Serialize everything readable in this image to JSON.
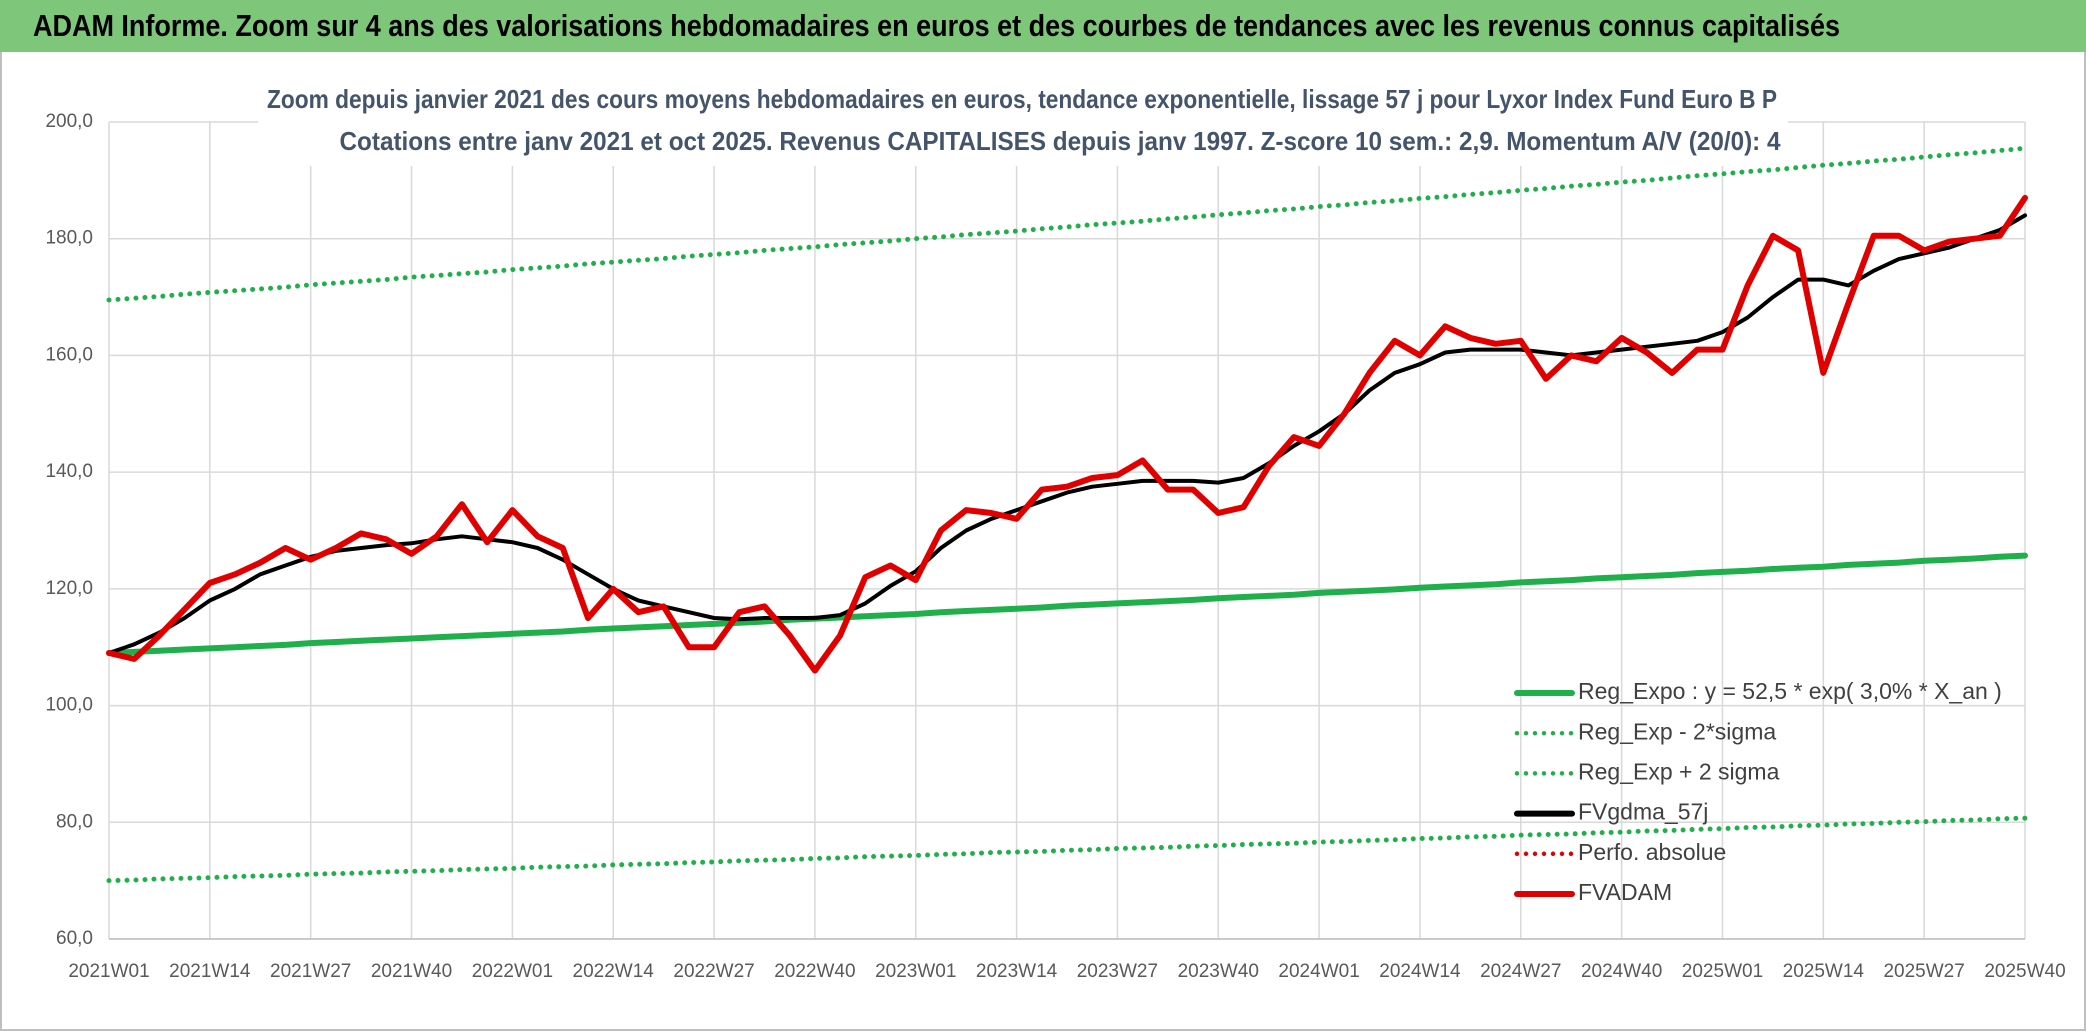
{
  "chart_data": {
    "type": "line",
    "header": "ADAM Informe. Zoom sur 4 ans des valorisations hebdomadaires en euros et des courbes de tendances avec les revenus connus capitalisés",
    "subtitle_lines": [
      "Zoom depuis janvier 2021 des cours moyens hebdomadaires en euros, tendance exponentielle, lissage 57 j pour Lyxor Index Fund Euro B P",
      "Cotations entre janv 2021 et oct 2025. Revenus CAPITALISES depuis janv 1997. Z-score 10 sem.: 2,9. Momentum A/V (20/0): 4"
    ],
    "categories": [
      "2021W01",
      null,
      null,
      null,
      "2021W14",
      null,
      null,
      null,
      "2021W27",
      null,
      null,
      null,
      "2021W40",
      null,
      null,
      null,
      "2022W01",
      null,
      null,
      null,
      "2022W14",
      null,
      null,
      null,
      "2022W27",
      null,
      null,
      null,
      "2022W40",
      null,
      null,
      null,
      "2023W01",
      null,
      null,
      null,
      "2023W14",
      null,
      null,
      null,
      "2023W27",
      null,
      null,
      null,
      "2023W40",
      null,
      null,
      null,
      "2024W01",
      null,
      null,
      null,
      "2024W14",
      null,
      null,
      null,
      "2024W27",
      null,
      null,
      null,
      "2024W40",
      null,
      null,
      null,
      "2025W01",
      null,
      null,
      null,
      "2025W14",
      null,
      null,
      null,
      "2025W27",
      null,
      null,
      null,
      "2025W40"
    ],
    "ylim": [
      60,
      200
    ],
    "yticks": [
      {
        "value": 60,
        "label": "60,0"
      },
      {
        "value": 80,
        "label": "80,0"
      },
      {
        "value": 100,
        "label": "100,0"
      },
      {
        "value": 120,
        "label": "120,0"
      },
      {
        "value": 140,
        "label": "140,0"
      },
      {
        "value": 160,
        "label": "160,0"
      },
      {
        "value": 180,
        "label": "180,0"
      },
      {
        "value": 200,
        "label": "200,0"
      }
    ],
    "grid": true,
    "legend": "lower right",
    "series": [
      {
        "name": "Reg_Expo : y = 52,5 * exp( 3,0% *  X_an )",
        "color": "#20b04b",
        "line_style": "solid",
        "values": [
          109.0,
          109.2,
          109.4,
          109.6,
          109.8,
          110.0,
          110.2,
          110.4,
          110.7,
          110.9,
          111.1,
          111.3,
          111.5,
          111.7,
          111.9,
          112.1,
          112.3,
          112.5,
          112.7,
          113.0,
          113.2,
          113.4,
          113.6,
          113.8,
          114.0,
          114.2,
          114.4,
          114.7,
          114.9,
          115.1,
          115.3,
          115.5,
          115.7,
          116.0,
          116.2,
          116.4,
          116.6,
          116.8,
          117.1,
          117.3,
          117.5,
          117.7,
          117.9,
          118.1,
          118.4,
          118.6,
          118.8,
          119.0,
          119.3,
          119.5,
          119.7,
          119.9,
          120.2,
          120.4,
          120.6,
          120.8,
          121.1,
          121.3,
          121.5,
          121.8,
          122.0,
          122.2,
          122.4,
          122.7,
          122.9,
          123.1,
          123.4,
          123.6,
          123.8,
          124.1,
          124.3,
          124.5,
          124.8,
          125.0,
          125.2,
          125.5,
          125.7
        ]
      },
      {
        "name": "Reg_Exp - 2*sigma",
        "color": "#20b04b",
        "line_style": "dotted",
        "values": [
          70.0,
          70.1,
          70.3,
          70.4,
          70.5,
          70.7,
          70.8,
          70.9,
          71.1,
          71.2,
          71.3,
          71.5,
          71.6,
          71.7,
          71.9,
          72.0,
          72.1,
          72.3,
          72.4,
          72.5,
          72.7,
          72.8,
          72.9,
          73.1,
          73.2,
          73.4,
          73.5,
          73.6,
          73.8,
          73.9,
          74.1,
          74.2,
          74.3,
          74.5,
          74.6,
          74.8,
          74.9,
          75.0,
          75.2,
          75.3,
          75.5,
          75.6,
          75.7,
          75.9,
          76.0,
          76.2,
          76.3,
          76.4,
          76.6,
          76.7,
          76.9,
          77.0,
          77.2,
          77.3,
          77.5,
          77.6,
          77.8,
          77.9,
          78.0,
          78.2,
          78.3,
          78.5,
          78.6,
          78.8,
          78.9,
          79.1,
          79.2,
          79.4,
          79.5,
          79.7,
          79.8,
          80.0,
          80.1,
          80.3,
          80.4,
          80.6,
          80.7
        ]
      },
      {
        "name": "Reg_Exp + 2 sigma",
        "color": "#20b04b",
        "line_style": "dotted",
        "values": [
          169.5,
          169.8,
          170.1,
          170.5,
          170.8,
          171.1,
          171.4,
          171.7,
          172.1,
          172.4,
          172.7,
          173.0,
          173.4,
          173.7,
          174.0,
          174.3,
          174.7,
          175.0,
          175.3,
          175.7,
          176.0,
          176.3,
          176.6,
          177.0,
          177.3,
          177.6,
          178.0,
          178.3,
          178.6,
          179.0,
          179.3,
          179.6,
          180.0,
          180.3,
          180.7,
          181.0,
          181.3,
          181.7,
          182.0,
          182.4,
          182.7,
          183.0,
          183.4,
          183.7,
          184.1,
          184.4,
          184.8,
          185.1,
          185.5,
          185.8,
          186.2,
          186.5,
          186.9,
          187.2,
          187.6,
          187.9,
          188.3,
          188.6,
          189.0,
          189.3,
          189.7,
          190.0,
          190.4,
          190.8,
          191.1,
          191.5,
          191.8,
          192.2,
          192.6,
          192.9,
          193.3,
          193.6,
          194.0,
          194.4,
          194.7,
          195.1,
          195.5
        ]
      },
      {
        "name": "FVgdma_57j",
        "color": "#000000",
        "line_style": "solid",
        "values": [
          109,
          110.5,
          112.5,
          115,
          118,
          120,
          122.5,
          124,
          125.5,
          126.5,
          127,
          127.5,
          127.8,
          128.5,
          129,
          128.5,
          128,
          127,
          125,
          122.5,
          120,
          118,
          117,
          116,
          115,
          114.8,
          115,
          115,
          115,
          115.5,
          117.5,
          120.5,
          123,
          127,
          130,
          132,
          133.5,
          135,
          136.5,
          137.5,
          138,
          138.5,
          138.5,
          138.5,
          138.2,
          139,
          141.5,
          144.5,
          147,
          150,
          154,
          157,
          158.5,
          160.5,
          161,
          161,
          161,
          160.5,
          160,
          160.5,
          161,
          161.5,
          162,
          162.5,
          164,
          166.5,
          170,
          173,
          173,
          172,
          174.5,
          176.5,
          177.5,
          178.5,
          180,
          181.5,
          184
        ]
      },
      {
        "name": "Perfo. absolue",
        "color": "#e00000",
        "line_style": "dotted",
        "values": [
          null,
          null,
          null,
          null,
          null,
          null,
          null,
          null,
          null,
          null,
          null,
          null,
          null,
          null,
          null,
          null,
          null,
          null,
          null,
          null,
          null,
          null,
          null,
          null,
          null,
          null,
          null,
          null,
          null,
          null,
          null,
          null,
          null,
          null,
          null,
          null,
          null,
          null,
          null,
          null,
          null,
          null,
          null,
          null,
          null,
          null,
          null,
          null,
          null,
          null,
          null,
          null,
          null,
          null,
          null,
          null,
          null,
          null,
          null,
          null,
          null,
          null,
          null,
          null,
          null,
          null,
          null,
          null,
          null,
          null,
          null,
          null,
          null,
          null,
          null,
          null,
          null
        ]
      },
      {
        "name": "FVADAM",
        "color": "#e00000",
        "line_style": "solid",
        "values": [
          109,
          108,
          112,
          116.5,
          121,
          122.5,
          124.5,
          127,
          125,
          127,
          129.5,
          128.5,
          126,
          129,
          134.5,
          128,
          133.5,
          129,
          127,
          115,
          120,
          116,
          117,
          110,
          110,
          116,
          117,
          112,
          106,
          112,
          122,
          124,
          121.5,
          130,
          133.5,
          133,
          132,
          137,
          137.5,
          139,
          139.5,
          142,
          137,
          137,
          133,
          134,
          141,
          146,
          144.5,
          150,
          157,
          162.5,
          160,
          165,
          163,
          162,
          162.5,
          156,
          160,
          159,
          163,
          160.5,
          157,
          161,
          161,
          172,
          180.5,
          178,
          157,
          169,
          180.5,
          180.5,
          178,
          179.5,
          180,
          180.5,
          187
        ]
      }
    ]
  }
}
